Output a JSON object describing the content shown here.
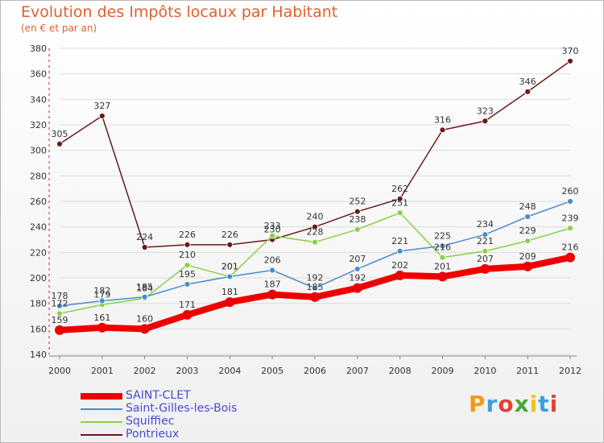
{
  "title": "Evolution des Impôts locaux par Habitant",
  "subtitle": "(en € et par an)",
  "logo_text": "Proxiti",
  "chart_data": {
    "type": "line",
    "x": [
      2000,
      2001,
      2002,
      2003,
      2004,
      2005,
      2006,
      2007,
      2008,
      2009,
      2010,
      2011,
      2012
    ],
    "ylim": [
      140,
      380
    ],
    "yticks": [
      140,
      160,
      180,
      200,
      220,
      240,
      260,
      280,
      300,
      320,
      340,
      360,
      380
    ],
    "grid": "horizontal",
    "legend_position": "bottom",
    "series": [
      {
        "name": "SAINT-CLET",
        "color": "#ee0000",
        "values": [
          159,
          161,
          160,
          171,
          181,
          187,
          185,
          192,
          202,
          201,
          207,
          209,
          216
        ]
      },
      {
        "name": "Saint-Gilles-les-Bois",
        "color": "#4a8ccc",
        "values": [
          178,
          182,
          185,
          195,
          201,
          206,
          192,
          207,
          221,
          225,
          234,
          248,
          260
        ]
      },
      {
        "name": "Squiffiec",
        "color": "#88d048",
        "values": [
          172,
          179,
          184,
          210,
          201,
          233,
          228,
          238,
          251,
          216,
          221,
          229,
          239
        ]
      },
      {
        "name": "Pontrieux",
        "color": "#6b1a1a",
        "values": [
          305,
          327,
          224,
          226,
          226,
          230,
          240,
          252,
          262,
          316,
          323,
          346,
          370
        ]
      }
    ]
  }
}
